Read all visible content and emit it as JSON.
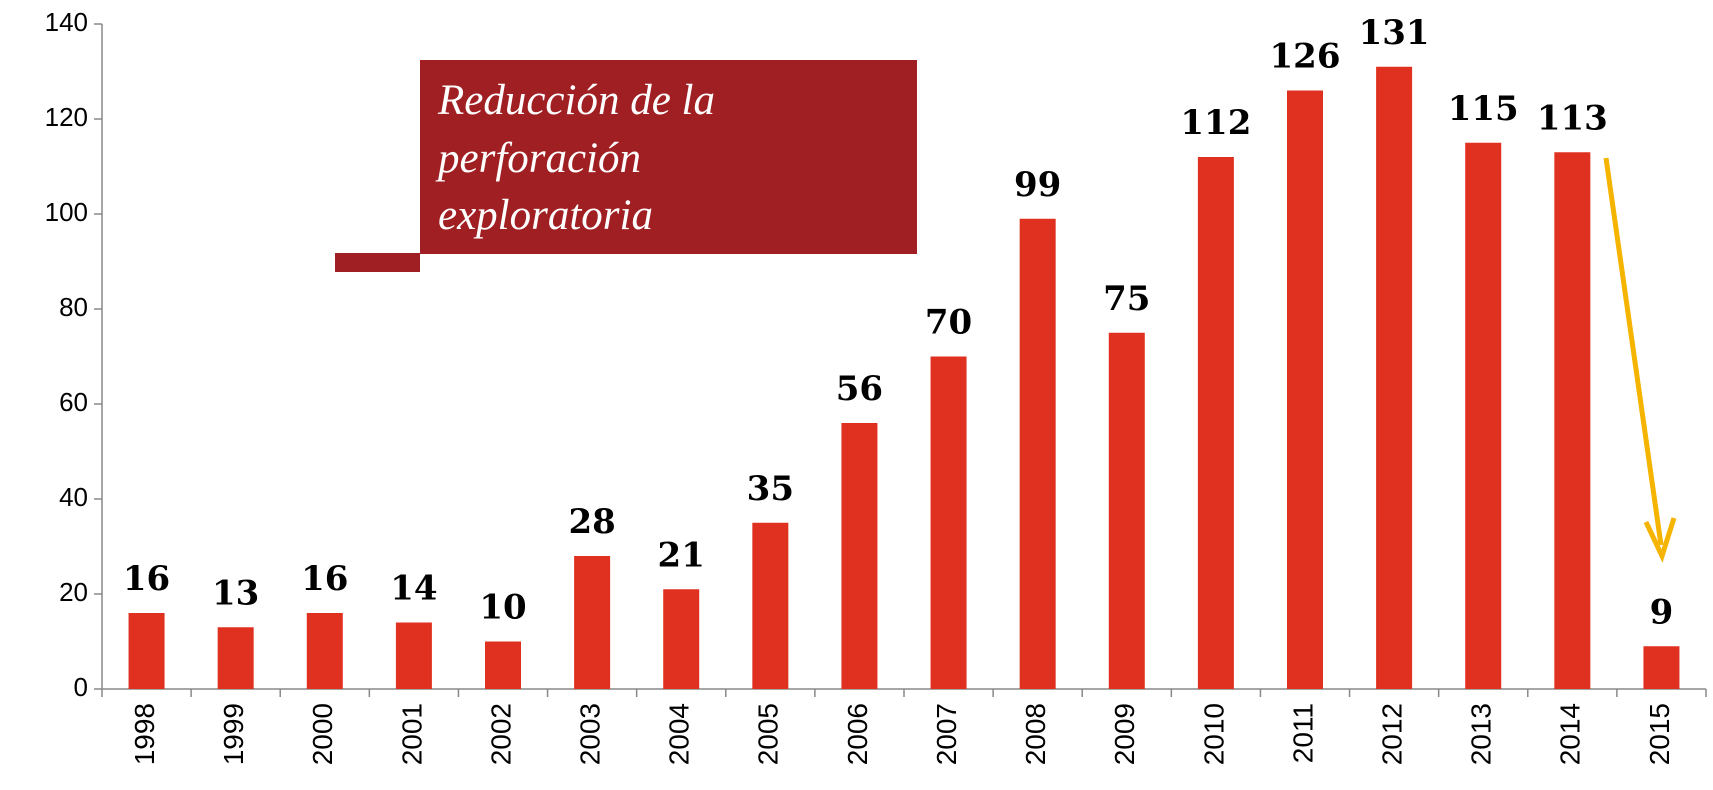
{
  "chart_data": {
    "type": "bar",
    "categories": [
      "1998",
      "1999",
      "2000",
      "2001",
      "2002",
      "2003",
      "2004",
      "2005",
      "2006",
      "2007",
      "2008",
      "2009",
      "2010",
      "2011",
      "2012",
      "2013",
      "2014",
      "2015"
    ],
    "values": [
      16,
      13,
      16,
      14,
      10,
      28,
      21,
      35,
      56,
      70,
      99,
      75,
      112,
      126,
      131,
      115,
      113,
      9
    ],
    "color": "#e03020",
    "ylim": [
      0,
      140
    ],
    "yticks": [
      0,
      20,
      40,
      60,
      80,
      100,
      120,
      140
    ],
    "annotation": [
      "Reducción de la",
      "perforación",
      "exploratoria"
    ]
  }
}
